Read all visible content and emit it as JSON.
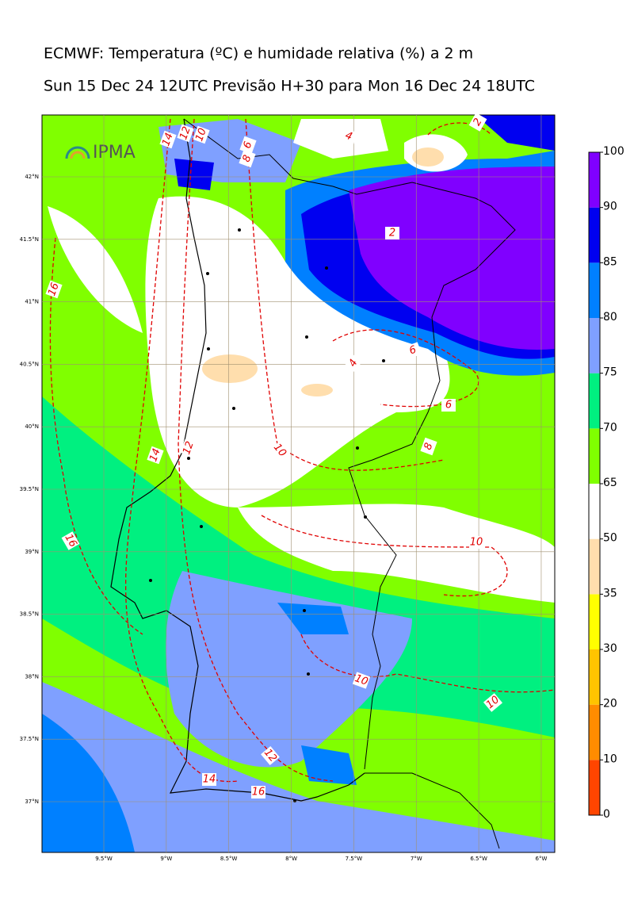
{
  "title": "ECMWF: Temperatura (ºC) e humidade relativa (%) a 2 m",
  "subtitle": "Sun 15 Dec 24 12UTC Previsão H+30 para Mon 16 Dec 24 18UTC",
  "logo": "IPMA",
  "map": {
    "lat_ticks": [
      {
        "value": 42,
        "label": "42°N"
      },
      {
        "value": 41.5,
        "label": "41.5°N"
      },
      {
        "value": 41,
        "label": "41°N"
      },
      {
        "value": 40.5,
        "label": "40.5°N"
      },
      {
        "value": 40,
        "label": "40°N"
      },
      {
        "value": 39.5,
        "label": "39.5°N"
      },
      {
        "value": 39,
        "label": "39°N"
      },
      {
        "value": 38.5,
        "label": "38.5°N"
      },
      {
        "value": 38,
        "label": "38°N"
      },
      {
        "value": 37.5,
        "label": "37.5°N"
      },
      {
        "value": 37,
        "label": "37°N"
      }
    ],
    "lon_ticks": [
      {
        "value": -9.5,
        "label": "9.5°W"
      },
      {
        "value": -9,
        "label": "9°W"
      },
      {
        "value": -8.5,
        "label": "8.5°W"
      },
      {
        "value": -8,
        "label": "8°W"
      },
      {
        "value": -7.5,
        "label": "7.5°W"
      },
      {
        "value": -7,
        "label": "7°W"
      },
      {
        "value": -6.5,
        "label": "6.5°W"
      },
      {
        "value": -6,
        "label": "6°W"
      }
    ],
    "contour_labels": [
      "14",
      "12",
      "10",
      "8",
      "6",
      "4",
      "2",
      "16",
      "2",
      "6",
      "4",
      "6",
      "8",
      "16",
      "14",
      "12",
      "10",
      "10",
      "10",
      "10",
      "12",
      "14",
      "16"
    ]
  },
  "colorbar": {
    "levels": [
      0,
      10,
      20,
      30,
      35,
      50,
      65,
      70,
      75,
      80,
      85,
      90,
      100
    ],
    "colors": [
      "#ff4500",
      "#ff8c00",
      "#ffc400",
      "#ffff00",
      "#ffdead",
      "#ffffff",
      "#80ff00",
      "#00f080",
      "#7fa0ff",
      "#0080ff",
      "#0000f0",
      "#8000ff"
    ]
  }
}
